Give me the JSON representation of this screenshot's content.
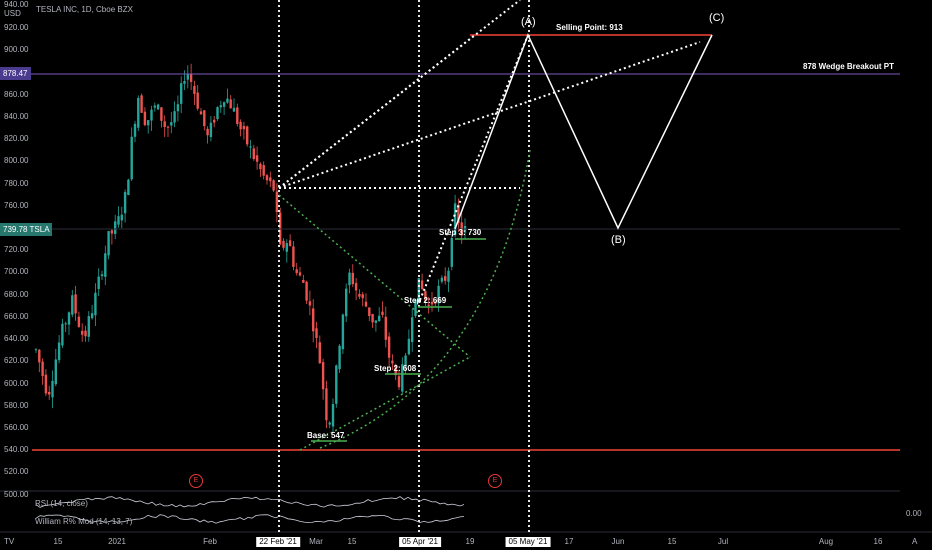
{
  "header": {
    "title": "TESLA INC, 1D, Cboe BZX",
    "currency": "USD",
    "top_value": "940.00"
  },
  "price_axis": {
    "ticks": [
      "920.00",
      "900.00",
      "880.00",
      "860.00",
      "840.00",
      "820.00",
      "800.00",
      "780.00",
      "760.00",
      "740.00",
      "720.00",
      "700.00",
      "680.00",
      "660.00",
      "640.00",
      "620.00",
      "600.00",
      "580.00",
      "560.00",
      "540.00",
      "520.00",
      "500.00"
    ],
    "indicator_value": "0.00"
  },
  "time_axis": {
    "labels": [
      "15",
      "2021",
      "Feb",
      "22 Feb '21",
      "Mar",
      "15",
      "05 Apr '21",
      "19",
      "05 May '21",
      "17",
      "Jun",
      "15",
      "Jul",
      "Aug",
      "16"
    ]
  },
  "badges": {
    "wedge_price": "878.47",
    "last_price": "739.78",
    "last_symbol": "TSLA"
  },
  "annotations": {
    "selling_point": "Selling Point: 913",
    "wedge_breakout": "878 Wedge Breakout PT",
    "base": "Base: 547",
    "step2a": "Step 2: 608",
    "step2b": "Step 2: 669",
    "step3": "Step 3: 730",
    "point_a": "(A)",
    "point_b": "(B)",
    "point_c": "(C)",
    "earnings": "E"
  },
  "indicators": {
    "rsi": "RSI (14, close)",
    "williams": "William R% Mod (14, 13, 7)"
  },
  "footer": {
    "tv_logo": "TV",
    "auto": "A"
  },
  "colors": {
    "up": "#26a69a",
    "down": "#ef5350",
    "wedge": "#7e57c2",
    "sell": "#f44336",
    "guide": "#4caf50"
  }
}
